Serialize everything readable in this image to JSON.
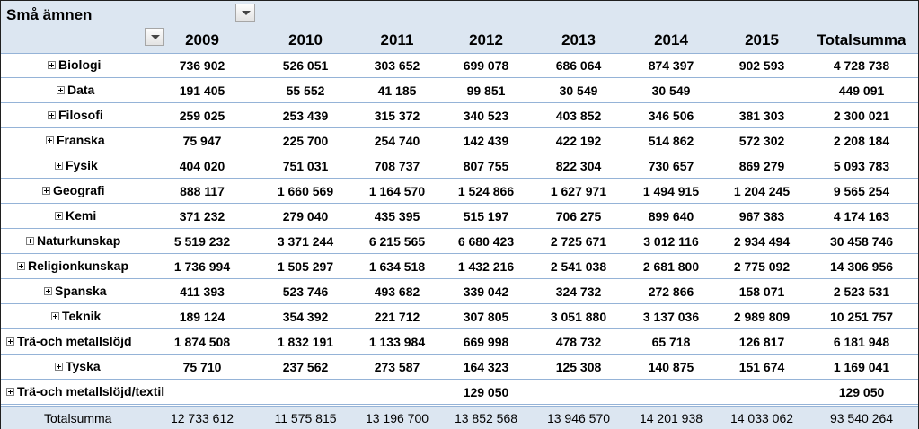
{
  "header": {
    "title": "Små ämnen",
    "years": [
      "2009",
      "2010",
      "2011",
      "2012",
      "2013",
      "2014",
      "2015"
    ],
    "total_label": "Totalsumma"
  },
  "rows": [
    {
      "label": "Biologi",
      "values": [
        "736 902",
        "526 051",
        "303 652",
        "699 078",
        "686 064",
        "874 397",
        "902 593"
      ],
      "total": "4 728 738"
    },
    {
      "label": "Data",
      "values": [
        "191 405",
        "55 552",
        "41 185",
        "99 851",
        "30 549",
        "30 549",
        ""
      ],
      "total": "449 091"
    },
    {
      "label": "Filosofi",
      "values": [
        "259 025",
        "253 439",
        "315 372",
        "340 523",
        "403 852",
        "346 506",
        "381 303"
      ],
      "total": "2 300 021"
    },
    {
      "label": "Franska",
      "values": [
        "75 947",
        "225 700",
        "254 740",
        "142 439",
        "422 192",
        "514 862",
        "572 302"
      ],
      "total": "2 208 184"
    },
    {
      "label": "Fysik",
      "values": [
        "404 020",
        "751 031",
        "708 737",
        "807 755",
        "822 304",
        "730 657",
        "869 279"
      ],
      "total": "5 093 783"
    },
    {
      "label": "Geografi",
      "values": [
        "888 117",
        "1 660 569",
        "1 164 570",
        "1 524 866",
        "1 627 971",
        "1 494 915",
        "1 204 245"
      ],
      "total": "9 565 254"
    },
    {
      "label": "Kemi",
      "values": [
        "371 232",
        "279 040",
        "435 395",
        "515 197",
        "706 275",
        "899 640",
        "967 383"
      ],
      "total": "4 174 163"
    },
    {
      "label": "Naturkunskap",
      "values": [
        "5 519 232",
        "3 371 244",
        "6 215 565",
        "6 680 423",
        "2 725 671",
        "3 012 116",
        "2 934 494"
      ],
      "total": "30 458 746"
    },
    {
      "label": "Religionkunskap",
      "values": [
        "1 736 994",
        "1 505 297",
        "1 634 518",
        "1 432 216",
        "2 541 038",
        "2 681 800",
        "2 775 092"
      ],
      "total": "14 306 956"
    },
    {
      "label": "Spanska",
      "values": [
        "411 393",
        "523 746",
        "493 682",
        "339 042",
        "324 732",
        "272 866",
        "158 071"
      ],
      "total": "2 523 531"
    },
    {
      "label": "Teknik",
      "values": [
        "189 124",
        "354 392",
        "221 712",
        "307 805",
        "3 051 880",
        "3 137 036",
        "2 989 809"
      ],
      "total": "10 251 757"
    },
    {
      "label": "Trä-och metallslöjd",
      "values": [
        "1 874 508",
        "1 832 191",
        "1 133 984",
        "669 998",
        "478 732",
        "65 718",
        "126 817"
      ],
      "total": "6 181 948"
    },
    {
      "label": "Tyska",
      "values": [
        "75 710",
        "237 562",
        "273 587",
        "164 323",
        "125 308",
        "140 875",
        "151 674"
      ],
      "total": "1 169 041"
    },
    {
      "label": "Trä-och metallslöjd/textil",
      "values": [
        "",
        "",
        "",
        "129 050",
        "",
        "",
        ""
      ],
      "total": "129 050"
    }
  ],
  "footer": {
    "label": "Totalsumma",
    "values": [
      "12 733 612",
      "11 575 815",
      "13 196 700",
      "13 852 568",
      "13 946 570",
      "14 201 938",
      "14 033 062"
    ],
    "total": "93 540 264"
  }
}
